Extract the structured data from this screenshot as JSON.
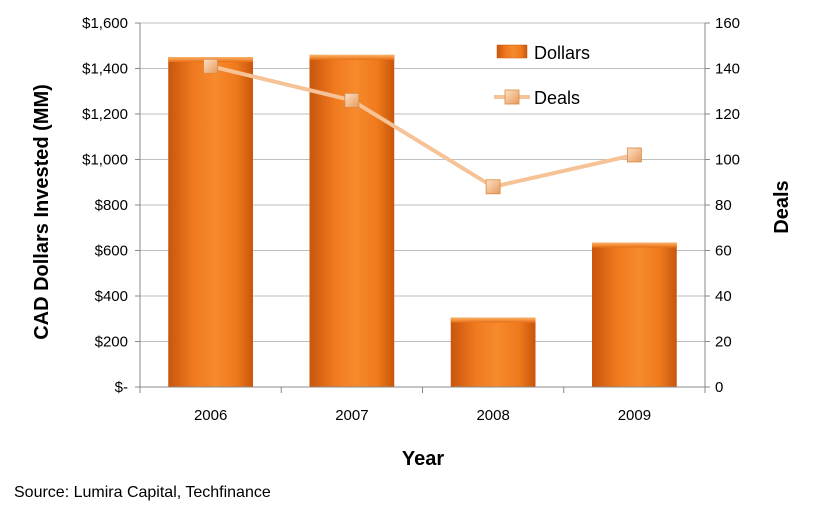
{
  "chart_data": {
    "type": "bar",
    "categories": [
      "2006",
      "2007",
      "2008",
      "2009"
    ],
    "series": [
      {
        "name": "Dollars",
        "type": "bar",
        "axis": "left",
        "values": [
          1450,
          1460,
          305,
          635
        ]
      },
      {
        "name": "Deals",
        "type": "line",
        "axis": "right",
        "values": [
          141,
          126,
          88,
          102
        ]
      }
    ],
    "xlabel": "Year",
    "ylabel": "CAD Dollars Invested (MM)",
    "y2label": "Deals",
    "ylim": [
      0,
      1600
    ],
    "y2lim": [
      0,
      160
    ],
    "y_ticks": [
      "$-",
      "$200",
      "$400",
      "$600",
      "$800",
      "$1,000",
      "$1,200",
      "$1,400",
      "$1,600"
    ],
    "y2_ticks": [
      "0",
      "20",
      "40",
      "60",
      "80",
      "100",
      "120",
      "140",
      "160"
    ],
    "grid": true,
    "legend": "top-right",
    "colors": {
      "bar": "#f07a1f",
      "bar_dark": "#c8560c",
      "line": "#f5c396",
      "marker": "#f2b47f",
      "grid": "#bfbfbf"
    }
  },
  "source_text": "Source: Lumira Capital,  Techfinance"
}
